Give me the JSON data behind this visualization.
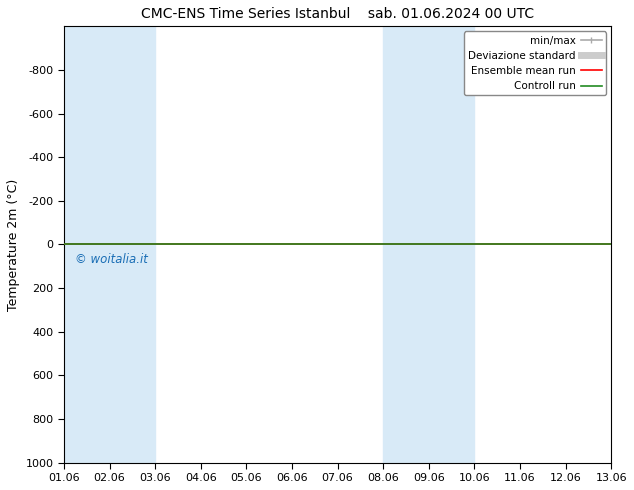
{
  "title": "CMC-ENS Time Series Istanbul",
  "title2": "sab. 01.06.2024 00 UTC",
  "ylabel": "Temperature 2m (°C)",
  "ylim_bottom": -1000,
  "ylim_top": 1000,
  "yticks": [
    -800,
    -600,
    -400,
    -200,
    0,
    200,
    400,
    600,
    800,
    1000
  ],
  "xlim": [
    0,
    12
  ],
  "xtick_labels": [
    "01.06",
    "02.06",
    "03.06",
    "04.06",
    "05.06",
    "06.06",
    "07.06",
    "08.06",
    "09.06",
    "10.06",
    "11.06",
    "12.06",
    "13.06"
  ],
  "xtick_positions": [
    0,
    1,
    2,
    3,
    4,
    5,
    6,
    7,
    8,
    9,
    10,
    11,
    12
  ],
  "bg_color": "#ffffff",
  "plot_bg_color": "#ffffff",
  "shaded_bands": [
    {
      "x_start": 0,
      "x_end": 2,
      "color": "#d8eaf7"
    },
    {
      "x_start": 7,
      "x_end": 9,
      "color": "#d8eaf7"
    }
  ],
  "legend": [
    {
      "label": "min/max",
      "color": "#aaaaaa",
      "lw": 1.2
    },
    {
      "label": "Deviazione standard",
      "color": "#cccccc",
      "lw": 5.0
    },
    {
      "label": "Ensemble mean run",
      "color": "#ff0000",
      "lw": 1.2
    },
    {
      "label": "Controll run",
      "color": "#228b22",
      "lw": 1.2
    }
  ],
  "watermark": "© woitalia.it",
  "watermark_color": "#1a6eb5",
  "controll_run_y": 0,
  "ensemble_mean_y": 0,
  "title_fontsize": 10,
  "ylabel_fontsize": 9,
  "tick_fontsize": 8,
  "legend_fontsize": 7.5
}
